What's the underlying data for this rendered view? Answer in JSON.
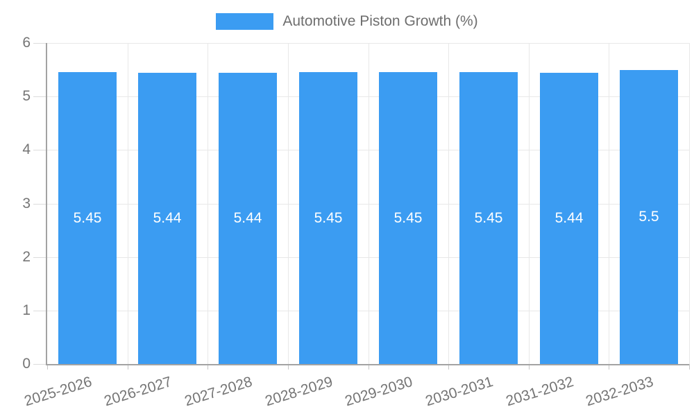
{
  "legend": {
    "label": "Automotive Piston Growth (%)"
  },
  "chart_data": {
    "type": "bar",
    "title": "",
    "legend_label": "Automotive Piston Growth (%)",
    "legend_position": "top",
    "categories": [
      "2025-2026",
      "2026-2027",
      "2027-2028",
      "2028-2029",
      "2029-2030",
      "2030-2031",
      "2031-2032",
      "2032-2033"
    ],
    "series": [
      {
        "name": "Automotive Piston Growth (%)",
        "values": [
          5.45,
          5.44,
          5.44,
          5.45,
          5.45,
          5.45,
          5.44,
          5.5
        ]
      }
    ],
    "value_labels": [
      "5.45",
      "5.44",
      "5.44",
      "5.45",
      "5.45",
      "5.45",
      "5.44",
      "5.5"
    ],
    "xlabel": "",
    "ylabel": "",
    "ylim": [
      0,
      6
    ],
    "yticks": [
      0,
      1,
      2,
      3,
      4,
      5,
      6
    ],
    "grid": true,
    "colors": {
      "bar": "#3b9cf2",
      "value_label": "#ffffff",
      "grid_line": "#e8e8e8",
      "axis_line": "#a3a3a3",
      "tick_label": "#757575",
      "legend_text": "#6e6e6e"
    }
  }
}
